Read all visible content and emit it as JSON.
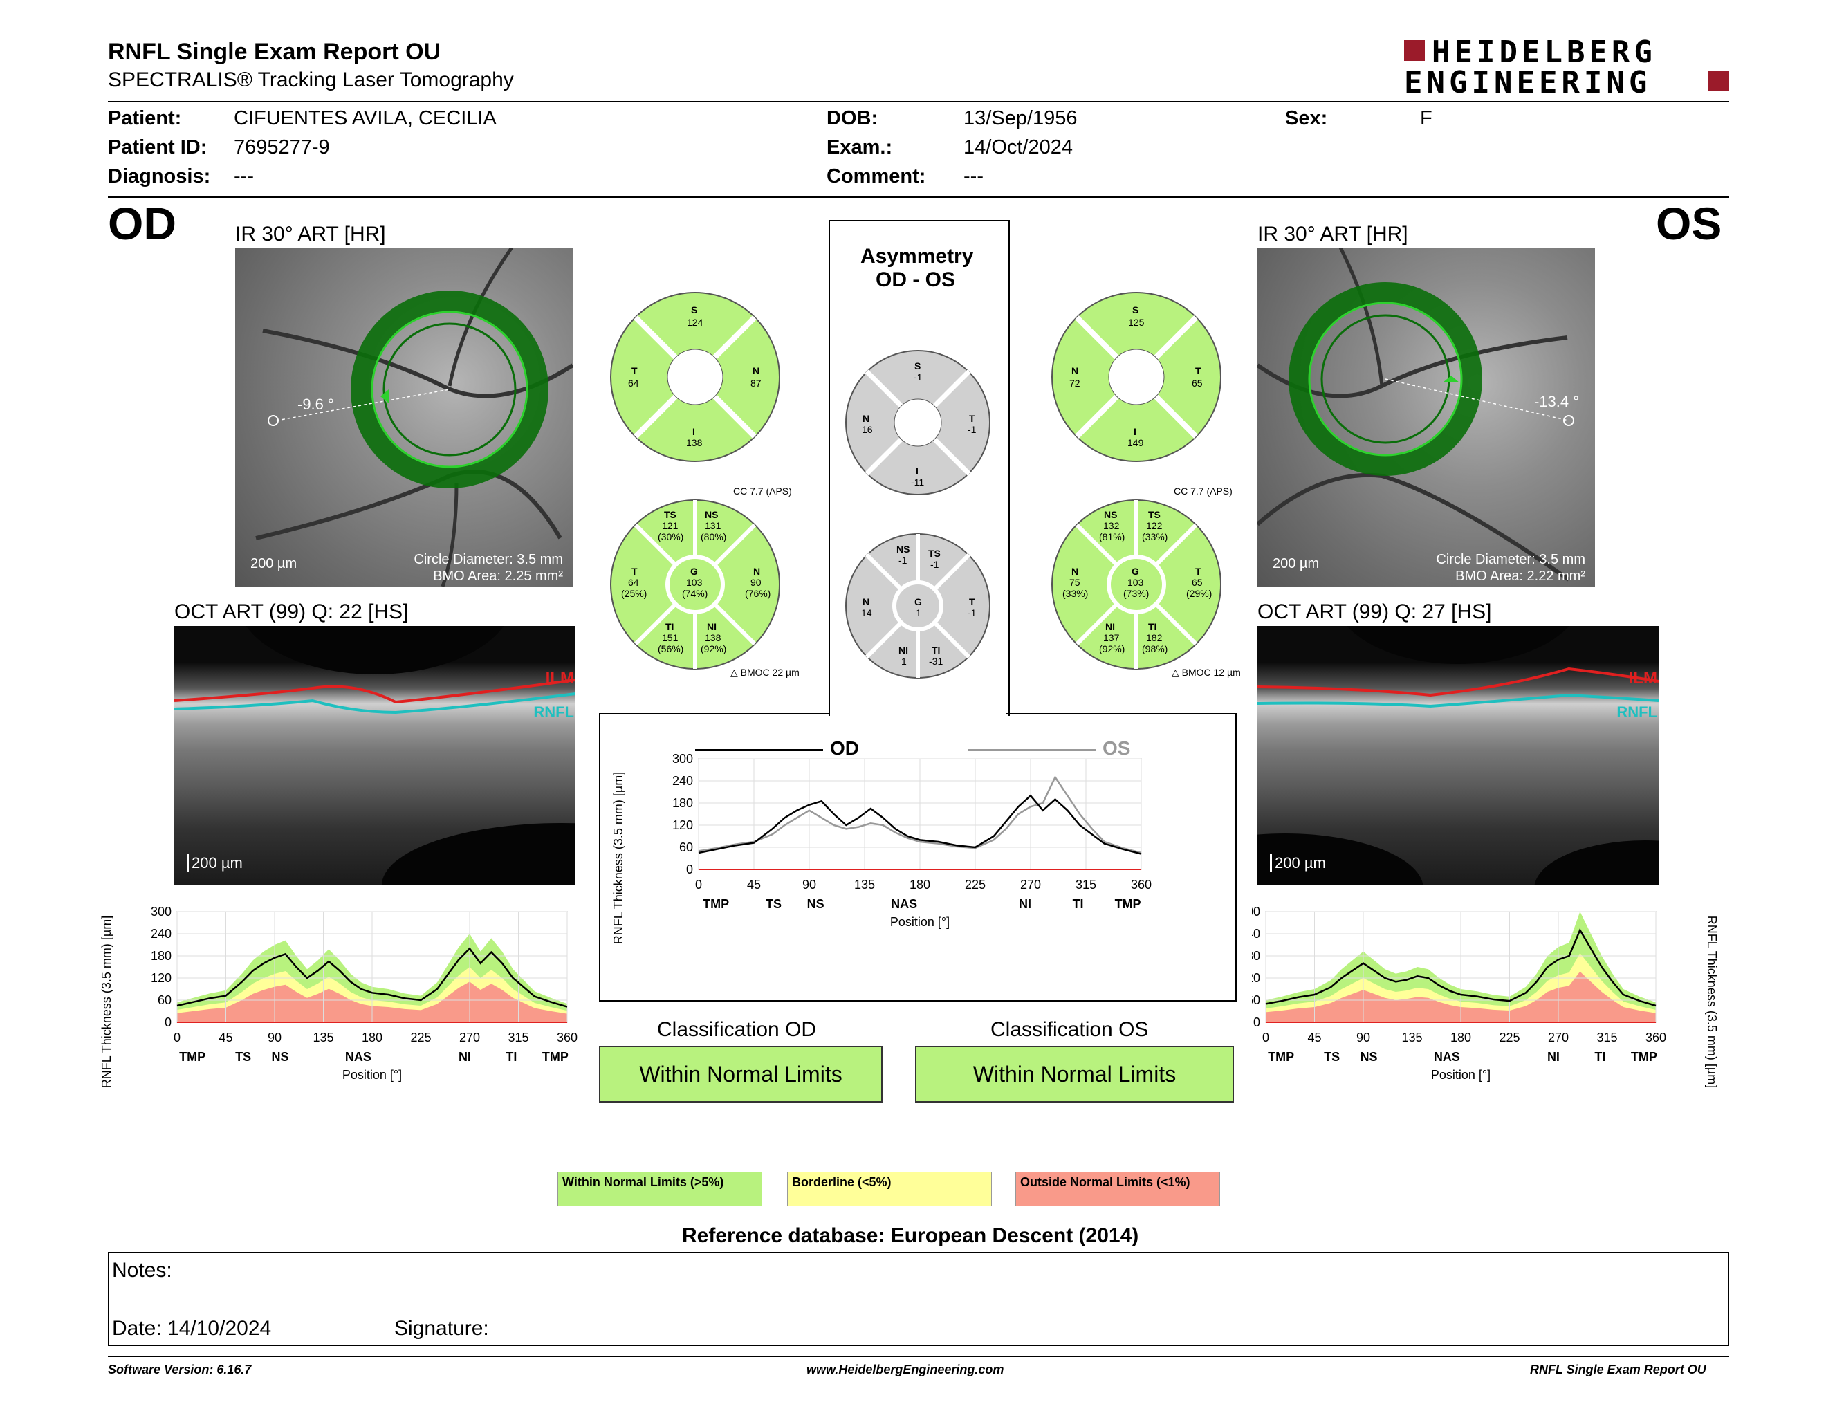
{
  "report": {
    "title": "RNFL Single Exam Report OU",
    "subtitle": "SPECTRALIS® Tracking Laser Tomography",
    "logo_line1": "HEIDELBERG",
    "logo_line2": "ENGINEERING"
  },
  "patient": {
    "patient_label": "Patient:",
    "patient_value": "CIFUENTES AVILA, CECILIA",
    "id_label": "Patient ID:",
    "id_value": "7695277-9",
    "diag_label": "Diagnosis:",
    "diag_value": "---",
    "dob_label": "DOB:",
    "dob_value": "13/Sep/1956",
    "exam_label": "Exam.:",
    "exam_value": "14/Oct/2024",
    "comment_label": "Comment:",
    "comment_value": "---",
    "sex_label": "Sex:",
    "sex_value": "F"
  },
  "od": {
    "eye": "OD",
    "ir_label": "IR 30° ART [HR]",
    "angle": "-9.6 °",
    "scale": "200 µm",
    "circle_diameter": "Circle Diameter: 3.5 mm",
    "bmo_area": "BMO Area: 2.25 mm²",
    "oct_label": "OCT ART (99) Q: 22 [HS]",
    "oct_scale": "200 µm",
    "ilm": "ILM",
    "rnfl": "RNFL",
    "sector4": {
      "S": "124",
      "T": "64",
      "N": "87",
      "I": "138"
    },
    "cc": "CC 7.7 (APS)",
    "bmoc": "BMOC 22 µm",
    "sector6": {
      "TS": {
        "v": "121",
        "p": "(30%)"
      },
      "NS": {
        "v": "131",
        "p": "(80%)"
      },
      "T": {
        "v": "64",
        "p": "(25%)"
      },
      "G": {
        "v": "103",
        "p": "(74%)"
      },
      "N": {
        "v": "90",
        "p": "(76%)"
      },
      "TI": {
        "v": "151",
        "p": "(56%)"
      },
      "NI": {
        "v": "138",
        "p": "(92%)"
      }
    },
    "classification_label": "Classification OD",
    "classification": "Within Normal Limits"
  },
  "os": {
    "eye": "OS",
    "ir_label": "IR 30° ART [HR]",
    "angle": "-13.4 °",
    "scale": "200 µm",
    "circle_diameter": "Circle Diameter: 3.5 mm",
    "bmo_area": "BMO Area: 2.22 mm²",
    "oct_label": "OCT ART (99) Q: 27 [HS]",
    "oct_scale": "200 µm",
    "ilm": "ILM",
    "rnfl": "RNFL",
    "sector4": {
      "S": "125",
      "N": "72",
      "T": "65",
      "I": "149"
    },
    "cc": "CC 7.7 (APS)",
    "bmoc": "BMOC 12 µm",
    "sector6": {
      "NS": {
        "v": "132",
        "p": "(81%)"
      },
      "TS": {
        "v": "122",
        "p": "(33%)"
      },
      "N": {
        "v": "75",
        "p": "(33%)"
      },
      "G": {
        "v": "103",
        "p": "(73%)"
      },
      "T": {
        "v": "65",
        "p": "(29%)"
      },
      "NI": {
        "v": "137",
        "p": "(92%)"
      },
      "TI": {
        "v": "182",
        "p": "(98%)"
      }
    },
    "classification_label": "Classification OS",
    "classification": "Within Normal Limits"
  },
  "asymmetry": {
    "title1": "Asymmetry",
    "title2": "OD - OS",
    "sector4": {
      "S": "-1",
      "N": "16",
      "T": "-1",
      "I": "-11"
    },
    "sector6": {
      "NS": "-1",
      "TS": "-1",
      "N": "14",
      "G": "1",
      "T": "-1",
      "NI": "1",
      "TI": "-31"
    },
    "legend_od": "OD",
    "legend_os": "OS"
  },
  "axes": {
    "ylabel": "RNFL Thickness (3.5 mm) [µm]",
    "xlabel": "Position [°]",
    "yticks": [
      "300",
      "240",
      "180",
      "120",
      "60",
      "0"
    ],
    "center_yticks": [
      "300",
      "240",
      "180",
      "120",
      "60",
      "0"
    ],
    "xticks": [
      "0",
      "45",
      "90",
      "135",
      "180",
      "225",
      "270",
      "315",
      "360"
    ],
    "regions": [
      "TMP",
      "TS",
      "NS",
      "NAS",
      "NI",
      "TI",
      "TMP"
    ]
  },
  "chart_data": [
    {
      "type": "line",
      "xlabel": "Position [°]",
      "ylabel": "RNFL Thickness (3.5 mm) [µm]",
      "xlim": [
        0,
        360
      ],
      "ylim": [
        0,
        300
      ],
      "series": [
        {
          "name": "OD",
          "x": [
            0,
            15,
            30,
            45,
            60,
            70,
            80,
            90,
            100,
            110,
            120,
            130,
            140,
            150,
            160,
            170,
            180,
            195,
            210,
            225,
            240,
            250,
            260,
            270,
            280,
            290,
            300,
            310,
            320,
            330,
            345,
            360
          ],
          "values": [
            45,
            55,
            65,
            72,
            110,
            140,
            160,
            175,
            185,
            150,
            120,
            140,
            165,
            140,
            110,
            90,
            80,
            75,
            65,
            60,
            90,
            130,
            170,
            200,
            160,
            190,
            160,
            120,
            95,
            70,
            55,
            42
          ]
        },
        {
          "name": "OS",
          "x": [
            0,
            15,
            30,
            45,
            60,
            70,
            80,
            90,
            100,
            110,
            120,
            130,
            140,
            150,
            160,
            170,
            180,
            195,
            210,
            225,
            240,
            250,
            260,
            270,
            280,
            290,
            300,
            310,
            320,
            330,
            345,
            360
          ],
          "values": [
            50,
            58,
            68,
            75,
            95,
            120,
            140,
            160,
            140,
            120,
            110,
            115,
            125,
            120,
            100,
            85,
            75,
            70,
            62,
            58,
            80,
            110,
            150,
            170,
            180,
            250,
            200,
            150,
            110,
            75,
            58,
            45
          ]
        }
      ]
    }
  ],
  "legend": {
    "wnl": "Within Normal Limits (>5%)",
    "bl": "Borderline (<5%)",
    "onl": "Outside Normal Limits (<1%)",
    "wnl_color": "#b8f27e",
    "bl_color": "#ffff99",
    "onl_color": "#f99a8a"
  },
  "reference": "Reference database: European Descent (2014)",
  "notes": {
    "notes_label": "Notes:",
    "date": "Date: 14/10/2024",
    "signature": "Signature:"
  },
  "footer": {
    "software": "Software Version: 6.16.7",
    "website": "www.HeidelbergEngineering.com",
    "report": "RNFL Single Exam Report OU"
  }
}
